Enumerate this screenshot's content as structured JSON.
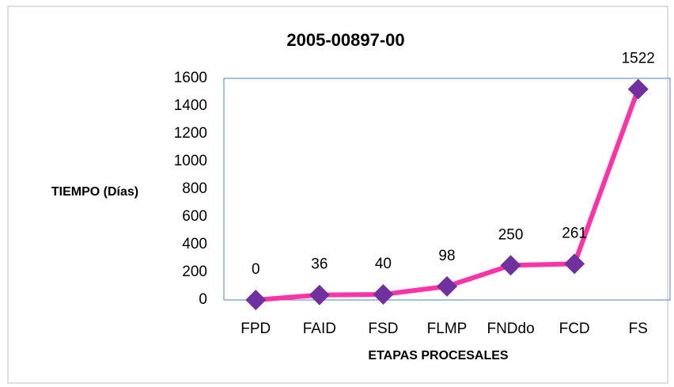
{
  "chart_data": {
    "type": "line",
    "title": "2005-00897-00",
    "y_label": "TIEMPO (Días)",
    "x_label": "ETAPAS PROCESALES",
    "categories": [
      "FPD",
      "FAID",
      "FSD",
      "FLMP",
      "FNDdo",
      "FCD",
      "FS"
    ],
    "values": [
      0,
      36,
      40,
      98,
      250,
      261,
      1522
    ],
    "color": "#ff33a8",
    "marker_color": "#7030a0",
    "ylim": [
      0,
      1600
    ],
    "yticks": [
      0,
      200,
      400,
      600,
      800,
      1000,
      1200,
      1400,
      1600
    ],
    "grid": false
  }
}
